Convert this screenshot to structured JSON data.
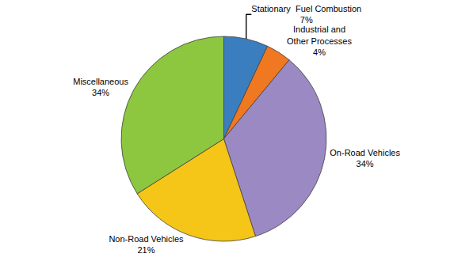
{
  "chart_data": {
    "type": "pie",
    "values": [
      7,
      4,
      34,
      21,
      34
    ],
    "value_labels": [
      "Stationary  Fuel Combustion\n7%",
      "Industrial and\nOther Processes\n4%",
      "On-Road Vehicles\n34%",
      "Non-Road Vehicles\n21%",
      "Miscellaneous\n34%"
    ],
    "colors": [
      "#3A7EBF",
      "#F07820",
      "#9B89C4",
      "#F5C518",
      "#8DC63F"
    ]
  }
}
